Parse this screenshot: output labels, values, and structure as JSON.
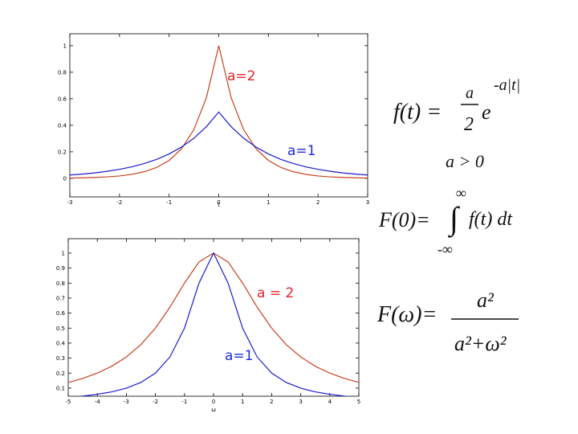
{
  "chart_data": [
    {
      "type": "line",
      "xlabel": "t",
      "x": [
        -3,
        -2.75,
        -2.5,
        -2.25,
        -2,
        -1.75,
        -1.5,
        -1.25,
        -1,
        -0.75,
        -0.5,
        -0.25,
        0,
        0.25,
        0.5,
        0.75,
        1,
        1.25,
        1.5,
        1.75,
        2,
        2.25,
        2.5,
        2.75,
        3
      ],
      "series": [
        {
          "name": "a=2",
          "color": "#c8401e",
          "label_color": "#e4202a",
          "values": [
            0.002,
            0.004,
            0.007,
            0.011,
            0.018,
            0.03,
            0.05,
            0.082,
            0.135,
            0.223,
            0.368,
            0.607,
            1,
            0.607,
            0.368,
            0.223,
            0.135,
            0.082,
            0.05,
            0.03,
            0.018,
            0.011,
            0.007,
            0.004,
            0.002
          ]
        },
        {
          "name": "a=1",
          "color": "#1a1ad0",
          "label_color": "#1b2be0",
          "values": [
            0.025,
            0.032,
            0.041,
            0.053,
            0.068,
            0.087,
            0.112,
            0.143,
            0.184,
            0.236,
            0.303,
            0.389,
            0.5,
            0.389,
            0.303,
            0.236,
            0.184,
            0.143,
            0.112,
            0.087,
            0.068,
            0.053,
            0.041,
            0.032,
            0.025
          ]
        }
      ],
      "xlim": [
        -3,
        3
      ],
      "xticks": [
        -3,
        -2,
        -1,
        0,
        1,
        2,
        3
      ],
      "ylim": [
        -0.14,
        1.09
      ],
      "yticks": [
        0,
        0.2,
        0.4,
        0.6,
        0.8,
        1
      ]
    },
    {
      "type": "line",
      "xlabel": "ω",
      "x": [
        -5,
        -4.5,
        -4,
        -3.5,
        -3,
        -2.5,
        -2,
        -1.5,
        -1,
        -0.5,
        0,
        0.5,
        1,
        1.5,
        2,
        2.5,
        3,
        3.5,
        4,
        4.5,
        5
      ],
      "series": [
        {
          "name": "a = 2",
          "color": "#c8401e",
          "label_color": "#e4202a",
          "values": [
            0.138,
            0.165,
            0.2,
            0.246,
            0.308,
            0.39,
            0.5,
            0.64,
            0.8,
            0.941,
            1,
            0.941,
            0.8,
            0.64,
            0.5,
            0.39,
            0.308,
            0.246,
            0.2,
            0.165,
            0.138
          ]
        },
        {
          "name": "a=1",
          "color": "#1a1ad0",
          "label_color": "#1b2be0",
          "values": [
            0.038,
            0.047,
            0.059,
            0.075,
            0.1,
            0.138,
            0.2,
            0.308,
            0.5,
            0.8,
            1,
            0.8,
            0.5,
            0.308,
            0.2,
            0.138,
            0.1,
            0.075,
            0.059,
            0.047,
            0.038
          ]
        }
      ],
      "xlim": [
        -5,
        5
      ],
      "xticks": [
        -5,
        -4,
        -3,
        -2,
        -1,
        0,
        1,
        2,
        3,
        4,
        5
      ],
      "ylim": [
        0.046,
        1.096
      ],
      "yticks": [
        0.1,
        0.2,
        0.3,
        0.4,
        0.5,
        0.6,
        0.7,
        0.8,
        0.9,
        1
      ]
    }
  ],
  "formulas": {
    "f_lhs": "f(t) =",
    "f_num": "a",
    "f_den": "2",
    "f_base": "e",
    "f_exp": "-a|t|",
    "condition": "a > 0",
    "F0_lhs": "F(0)=",
    "F0_int": "∫",
    "F0_upper": "∞",
    "F0_lower": "-∞",
    "F0_body": "f(t) dt",
    "Fw_lhs": "F(ω)=",
    "Fw_num": "a²",
    "Fw_den": "a²+ω²"
  }
}
